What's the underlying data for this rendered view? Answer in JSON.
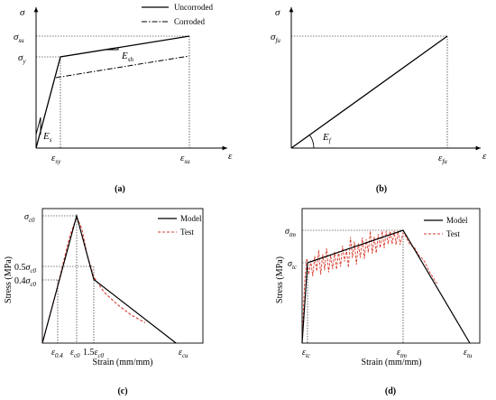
{
  "chart_data": [
    {
      "panel_label": "(a)",
      "type": "line",
      "xlabel": "ε",
      "ylabel": "σ",
      "x_ticks": [
        "εsy",
        "εsu"
      ],
      "y_ticks": [
        "σsu",
        "σy"
      ],
      "annotations": [
        "Es",
        "Esh"
      ],
      "legend": {
        "position": "top-right",
        "entries": [
          "Uncorroded",
          "Corroded"
        ]
      },
      "series": [
        {
          "name": "Uncorroded",
          "style": "solid",
          "points": [
            [
              0,
              0
            ],
            [
              0.15,
              0.77
            ],
            [
              1.0,
              1.0
            ]
          ]
        },
        {
          "name": "Corroded",
          "style": "dash-dot",
          "points": [
            [
              0.12,
              0.61
            ],
            [
              1.0,
              0.8
            ]
          ]
        }
      ]
    },
    {
      "panel_label": "(b)",
      "type": "line",
      "xlabel": "ε",
      "ylabel": "σ",
      "x_ticks": [
        "εfu"
      ],
      "y_ticks": [
        "σfu"
      ],
      "annotations": [
        "Ef"
      ],
      "series": [
        {
          "style": "solid",
          "points": [
            [
              0,
              0
            ],
            [
              1.0,
              1.0
            ]
          ]
        }
      ]
    },
    {
      "panel_label": "(c)",
      "type": "line",
      "xlabel": "Strain (mm/mm)",
      "ylabel": "Stress (MPa)",
      "x_ticks": [
        "ε0.4",
        "εc0",
        "1.5εc0",
        "εcu"
      ],
      "y_ticks": [
        "σc0",
        "0.5σc0",
        "0.4σc0"
      ],
      "legend": {
        "position": "top-right",
        "entries": [
          "Model",
          "Test"
        ]
      },
      "series": [
        {
          "name": "Model",
          "style": "solid",
          "points": [
            [
              0,
              0
            ],
            [
              1.0,
              1.0
            ],
            [
              1.5,
              0.5
            ],
            [
              3.9,
              0
            ]
          ]
        },
        {
          "name": "Test",
          "style": "dashed",
          "points": [
            [
              0,
              0
            ],
            [
              0.2,
              0.2
            ],
            [
              0.4,
              0.4
            ],
            [
              0.6,
              0.62
            ],
            [
              0.8,
              0.84
            ],
            [
              1.0,
              0.99
            ],
            [
              1.15,
              0.9
            ],
            [
              1.3,
              0.7
            ],
            [
              1.5,
              0.52
            ],
            [
              1.8,
              0.4
            ],
            [
              2.2,
              0.3
            ],
            [
              2.6,
              0.22
            ],
            [
              3.0,
              0.16
            ]
          ]
        }
      ]
    },
    {
      "panel_label": "(d)",
      "type": "line",
      "xlabel": "Strain (mm/mm)",
      "ylabel": "Stress (MPa)",
      "x_ticks": [
        "εtc",
        "εtm",
        "εtu"
      ],
      "y_ticks": [
        "σtm",
        "σtc"
      ],
      "legend": {
        "position": "top-right",
        "entries": [
          "Model",
          "Test"
        ]
      },
      "series": [
        {
          "name": "Model",
          "style": "solid",
          "points": [
            [
              0,
              0
            ],
            [
              0.03,
              0.73
            ],
            [
              0.6,
              1.0
            ],
            [
              1.0,
              0
            ]
          ]
        }
      ]
    }
  ]
}
